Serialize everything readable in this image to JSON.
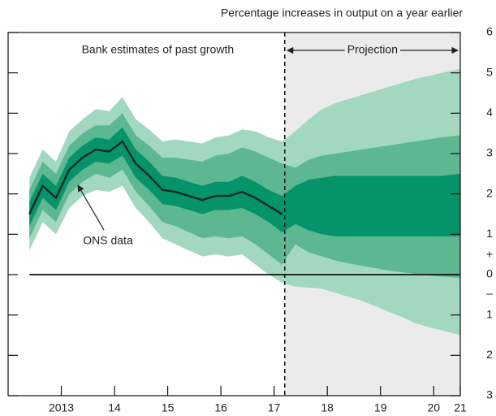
{
  "chart_data": {
    "type": "fan",
    "y_label": "Percentage increases in output on a year earlier",
    "annotations": {
      "past": "Bank estimates of past growth",
      "projection": "Projection"
    },
    "sign_labels": {
      "positive": "+",
      "negative": "–"
    },
    "projection_start": 2017.7,
    "projection_background": "#ebebeb",
    "xlim": [
      2012.5,
      2021.0
    ],
    "xticks": [
      {
        "value": 2013.5,
        "label": "2013"
      },
      {
        "value": 2014.5,
        "label": "14"
      },
      {
        "value": 2015.5,
        "label": "15"
      },
      {
        "value": 2016.5,
        "label": "16"
      },
      {
        "value": 2017.5,
        "label": "17"
      },
      {
        "value": 2018.5,
        "label": "18"
      },
      {
        "value": 2019.5,
        "label": "19"
      },
      {
        "value": 2020.5,
        "label": "20"
      },
      {
        "value": 2021.0,
        "label": "21"
      }
    ],
    "ylim": [
      -3,
      6
    ],
    "yticks": [
      {
        "value": -3,
        "label": "3"
      },
      {
        "value": -2,
        "label": "2"
      },
      {
        "value": -1,
        "label": "1"
      },
      0,
      1,
      2,
      3,
      4,
      5,
      6
    ],
    "x": [
      2012.9,
      2013.15,
      2013.4,
      2013.65,
      2013.9,
      2014.15,
      2014.4,
      2014.65,
      2014.9,
      2015.15,
      2015.4,
      2015.65,
      2015.9,
      2016.15,
      2016.4,
      2016.65,
      2016.9,
      2017.15,
      2017.4,
      2017.65,
      2017.9,
      2018.15,
      2018.4,
      2018.65,
      2018.9,
      2019.15,
      2019.4,
      2019.65,
      2019.9,
      2020.15,
      2020.4,
      2020.65,
      2021.0
    ],
    "bands": [
      {
        "color": "#a3d8c0",
        "lower": [
          0.6,
          1.3,
          1.0,
          1.65,
          1.95,
          2.1,
          2.05,
          2.2,
          1.65,
          1.3,
          0.9,
          0.75,
          0.6,
          0.45,
          0.5,
          0.45,
          0.5,
          0.25,
          0,
          -0.2,
          -0.3,
          -0.32,
          -0.35,
          -0.45,
          -0.55,
          -0.65,
          -0.78,
          -0.92,
          -1.05,
          -1.2,
          -1.3,
          -1.38,
          -1.5
        ],
        "upper": [
          2.4,
          3.1,
          2.8,
          3.55,
          3.85,
          4.1,
          4.05,
          4.4,
          3.85,
          3.6,
          3.3,
          3.35,
          3.3,
          3.25,
          3.4,
          3.45,
          3.6,
          3.55,
          3.4,
          3.3,
          3.55,
          3.85,
          4.1,
          4.25,
          4.35,
          4.45,
          4.55,
          4.65,
          4.75,
          4.85,
          4.92,
          5.0,
          5.1
        ]
      },
      {
        "color": "#5db892",
        "lower": [
          0.9,
          1.6,
          1.3,
          2.0,
          2.3,
          2.5,
          2.4,
          2.6,
          2.05,
          1.7,
          1.3,
          1.2,
          1.05,
          0.9,
          0.95,
          0.9,
          0.95,
          0.75,
          0.5,
          0.25,
          0.75,
          0.55,
          0.45,
          0.35,
          0.28,
          0.22,
          0.16,
          0.1,
          0.06,
          0.02,
          -0.02,
          -0.05,
          -0.08
        ],
        "upper": [
          2.1,
          2.8,
          2.5,
          3.2,
          3.5,
          3.7,
          3.7,
          4.0,
          3.45,
          3.2,
          2.9,
          2.9,
          2.85,
          2.8,
          2.95,
          3.0,
          3.15,
          3.05,
          2.9,
          2.75,
          2.65,
          2.85,
          2.95,
          3.0,
          3.05,
          3.1,
          3.15,
          3.2,
          3.25,
          3.3,
          3.35,
          3.4,
          3.45
        ]
      },
      {
        "color": "#05936a",
        "lower": [
          1.2,
          1.9,
          1.6,
          2.3,
          2.6,
          2.8,
          2.75,
          2.95,
          2.4,
          2.1,
          1.75,
          1.7,
          1.6,
          1.5,
          1.6,
          1.6,
          1.65,
          1.5,
          1.3,
          1.05,
          1.25,
          1.1,
          1.0,
          0.95,
          0.95,
          0.95,
          0.95,
          0.95,
          0.95,
          0.95,
          0.95,
          0.95,
          0.95
        ],
        "upper": [
          1.8,
          2.5,
          2.2,
          2.9,
          3.2,
          3.4,
          3.35,
          3.65,
          3.1,
          2.8,
          2.45,
          2.4,
          2.3,
          2.2,
          2.3,
          2.3,
          2.45,
          2.3,
          2.1,
          1.95,
          2.2,
          2.35,
          2.4,
          2.45,
          2.45,
          2.45,
          2.45,
          2.45,
          2.45,
          2.45,
          2.45,
          2.45,
          2.5
        ]
      }
    ],
    "line": {
      "name": "ONS data",
      "color": "#1b2a24",
      "values": [
        1.5,
        2.2,
        1.9,
        2.6,
        2.9,
        3.1,
        3.05,
        3.3,
        2.75,
        2.45,
        2.1,
        2.05,
        1.95,
        1.85,
        1.95,
        1.95,
        2.05,
        1.9,
        1.7,
        1.5,
        null,
        null,
        null,
        null,
        null,
        null,
        null,
        null,
        null,
        null,
        null,
        null,
        null
      ]
    }
  }
}
